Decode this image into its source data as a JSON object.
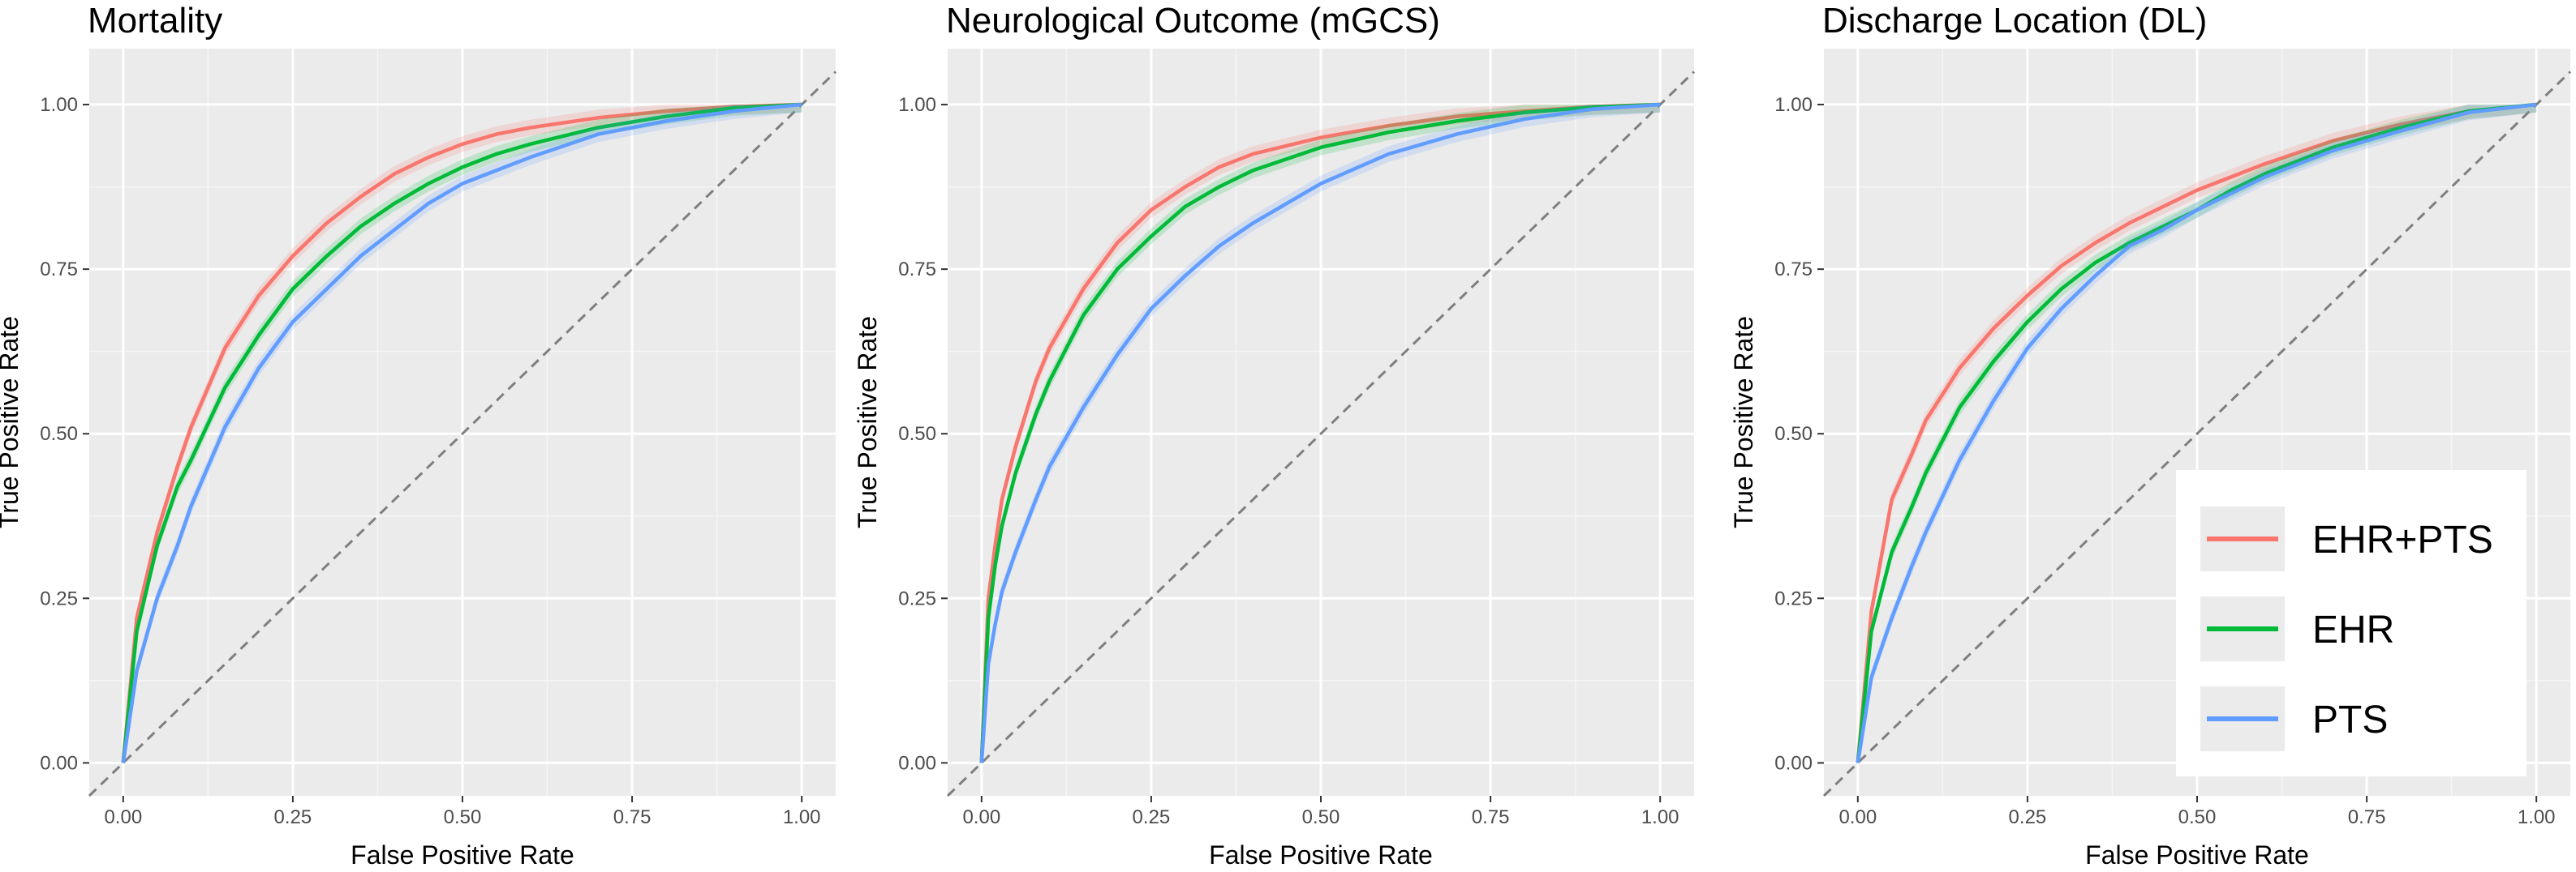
{
  "chart_data": [
    {
      "type": "line",
      "title": "Mortality",
      "xlabel": "False Positive Rate",
      "ylabel": "True Positive Rate",
      "xlim": [
        0,
        1
      ],
      "ylim": [
        0,
        1
      ],
      "xticks": [
        "0.00",
        "0.25",
        "0.50",
        "0.75",
        "1.00"
      ],
      "yticks": [
        "0.00",
        "0.25",
        "0.50",
        "0.75",
        "1.00"
      ],
      "grid": true,
      "reference_line": "diagonal dashed",
      "series": [
        {
          "name": "EHR+PTS",
          "color": "#F8766D",
          "x": [
            0,
            0.02,
            0.05,
            0.08,
            0.1,
            0.15,
            0.2,
            0.25,
            0.3,
            0.35,
            0.4,
            0.45,
            0.5,
            0.55,
            0.6,
            0.7,
            0.8,
            0.9,
            1.0
          ],
          "y": [
            0,
            0.22,
            0.35,
            0.45,
            0.51,
            0.63,
            0.71,
            0.77,
            0.82,
            0.86,
            0.895,
            0.92,
            0.94,
            0.955,
            0.965,
            0.98,
            0.99,
            0.997,
            1.0
          ]
        },
        {
          "name": "EHR",
          "color": "#00BA38",
          "x": [
            0,
            0.02,
            0.05,
            0.08,
            0.1,
            0.15,
            0.2,
            0.25,
            0.3,
            0.35,
            0.4,
            0.45,
            0.5,
            0.55,
            0.6,
            0.7,
            0.8,
            0.9,
            1.0
          ],
          "y": [
            0,
            0.2,
            0.33,
            0.42,
            0.46,
            0.57,
            0.65,
            0.72,
            0.77,
            0.815,
            0.85,
            0.88,
            0.905,
            0.925,
            0.94,
            0.965,
            0.982,
            0.995,
            1.0
          ]
        },
        {
          "name": "PTS",
          "color": "#619CFF",
          "x": [
            0,
            0.02,
            0.05,
            0.08,
            0.1,
            0.15,
            0.2,
            0.25,
            0.3,
            0.35,
            0.4,
            0.45,
            0.5,
            0.55,
            0.6,
            0.7,
            0.8,
            0.9,
            1.0
          ],
          "y": [
            0,
            0.14,
            0.25,
            0.33,
            0.39,
            0.51,
            0.6,
            0.67,
            0.72,
            0.77,
            0.81,
            0.85,
            0.88,
            0.9,
            0.92,
            0.955,
            0.975,
            0.99,
            1.0
          ]
        }
      ]
    },
    {
      "type": "line",
      "title": "Neurological Outcome (mGCS)",
      "xlabel": "False Positive Rate",
      "ylabel": "True Positive Rate",
      "xlim": [
        0,
        1
      ],
      "ylim": [
        0,
        1
      ],
      "xticks": [
        "0.00",
        "0.25",
        "0.50",
        "0.75",
        "1.00"
      ],
      "yticks": [
        "0.00",
        "0.25",
        "0.50",
        "0.75",
        "1.00"
      ],
      "grid": true,
      "reference_line": "diagonal dashed",
      "series": [
        {
          "name": "EHR+PTS",
          "color": "#F8766D",
          "x": [
            0,
            0.01,
            0.02,
            0.03,
            0.05,
            0.08,
            0.1,
            0.15,
            0.2,
            0.25,
            0.3,
            0.35,
            0.4,
            0.5,
            0.6,
            0.7,
            0.8,
            0.9,
            1.0
          ],
          "y": [
            0,
            0.25,
            0.33,
            0.4,
            0.48,
            0.58,
            0.63,
            0.72,
            0.79,
            0.84,
            0.875,
            0.905,
            0.925,
            0.95,
            0.968,
            0.982,
            0.99,
            0.997,
            1.0
          ]
        },
        {
          "name": "EHR",
          "color": "#00BA38",
          "x": [
            0,
            0.01,
            0.02,
            0.03,
            0.05,
            0.08,
            0.1,
            0.15,
            0.2,
            0.25,
            0.3,
            0.35,
            0.4,
            0.5,
            0.6,
            0.7,
            0.8,
            0.9,
            1.0
          ],
          "y": [
            0,
            0.22,
            0.3,
            0.36,
            0.44,
            0.53,
            0.58,
            0.68,
            0.75,
            0.8,
            0.845,
            0.875,
            0.9,
            0.935,
            0.958,
            0.975,
            0.988,
            0.996,
            1.0
          ]
        },
        {
          "name": "PTS",
          "color": "#619CFF",
          "x": [
            0,
            0.01,
            0.02,
            0.03,
            0.05,
            0.08,
            0.1,
            0.15,
            0.2,
            0.25,
            0.3,
            0.35,
            0.4,
            0.5,
            0.6,
            0.7,
            0.8,
            0.9,
            1.0
          ],
          "y": [
            0,
            0.15,
            0.21,
            0.26,
            0.32,
            0.4,
            0.45,
            0.54,
            0.62,
            0.69,
            0.74,
            0.785,
            0.82,
            0.88,
            0.925,
            0.955,
            0.978,
            0.993,
            1.0
          ]
        }
      ]
    },
    {
      "type": "line",
      "title": "Discharge Location (DL)",
      "xlabel": "False Positive Rate",
      "ylabel": "True Positive Rate",
      "xlim": [
        0,
        1
      ],
      "ylim": [
        0,
        1
      ],
      "xticks": [
        "0.00",
        "0.25",
        "0.50",
        "0.75",
        "1.00"
      ],
      "yticks": [
        "0.00",
        "0.25",
        "0.50",
        "0.75",
        "1.00"
      ],
      "grid": true,
      "reference_line": "diagonal dashed",
      "legend": {
        "position": "bottom-right",
        "entries": [
          "EHR+PTS",
          "EHR",
          "PTS"
        ]
      },
      "series": [
        {
          "name": "EHR+PTS",
          "color": "#F8766D",
          "x": [
            0,
            0.02,
            0.05,
            0.08,
            0.1,
            0.15,
            0.2,
            0.25,
            0.3,
            0.35,
            0.4,
            0.45,
            0.5,
            0.55,
            0.6,
            0.7,
            0.8,
            0.9,
            1.0
          ],
          "y": [
            0,
            0.23,
            0.4,
            0.47,
            0.52,
            0.6,
            0.66,
            0.71,
            0.755,
            0.79,
            0.82,
            0.845,
            0.87,
            0.89,
            0.91,
            0.945,
            0.97,
            0.99,
            1.0
          ]
        },
        {
          "name": "EHR",
          "color": "#00BA38",
          "x": [
            0,
            0.02,
            0.05,
            0.08,
            0.1,
            0.15,
            0.2,
            0.25,
            0.3,
            0.35,
            0.4,
            0.45,
            0.5,
            0.55,
            0.6,
            0.7,
            0.8,
            0.9,
            1.0
          ],
          "y": [
            0,
            0.2,
            0.32,
            0.39,
            0.44,
            0.54,
            0.61,
            0.67,
            0.72,
            0.76,
            0.79,
            0.815,
            0.84,
            0.87,
            0.895,
            0.935,
            0.965,
            0.99,
            1.0
          ]
        },
        {
          "name": "PTS",
          "color": "#619CFF",
          "x": [
            0,
            0.02,
            0.05,
            0.08,
            0.1,
            0.15,
            0.2,
            0.25,
            0.3,
            0.35,
            0.4,
            0.45,
            0.5,
            0.55,
            0.6,
            0.7,
            0.8,
            0.9,
            1.0
          ],
          "y": [
            0,
            0.13,
            0.22,
            0.3,
            0.35,
            0.46,
            0.55,
            0.63,
            0.69,
            0.74,
            0.785,
            0.81,
            0.84,
            0.865,
            0.89,
            0.93,
            0.96,
            0.988,
            1.0
          ]
        }
      ]
    }
  ]
}
